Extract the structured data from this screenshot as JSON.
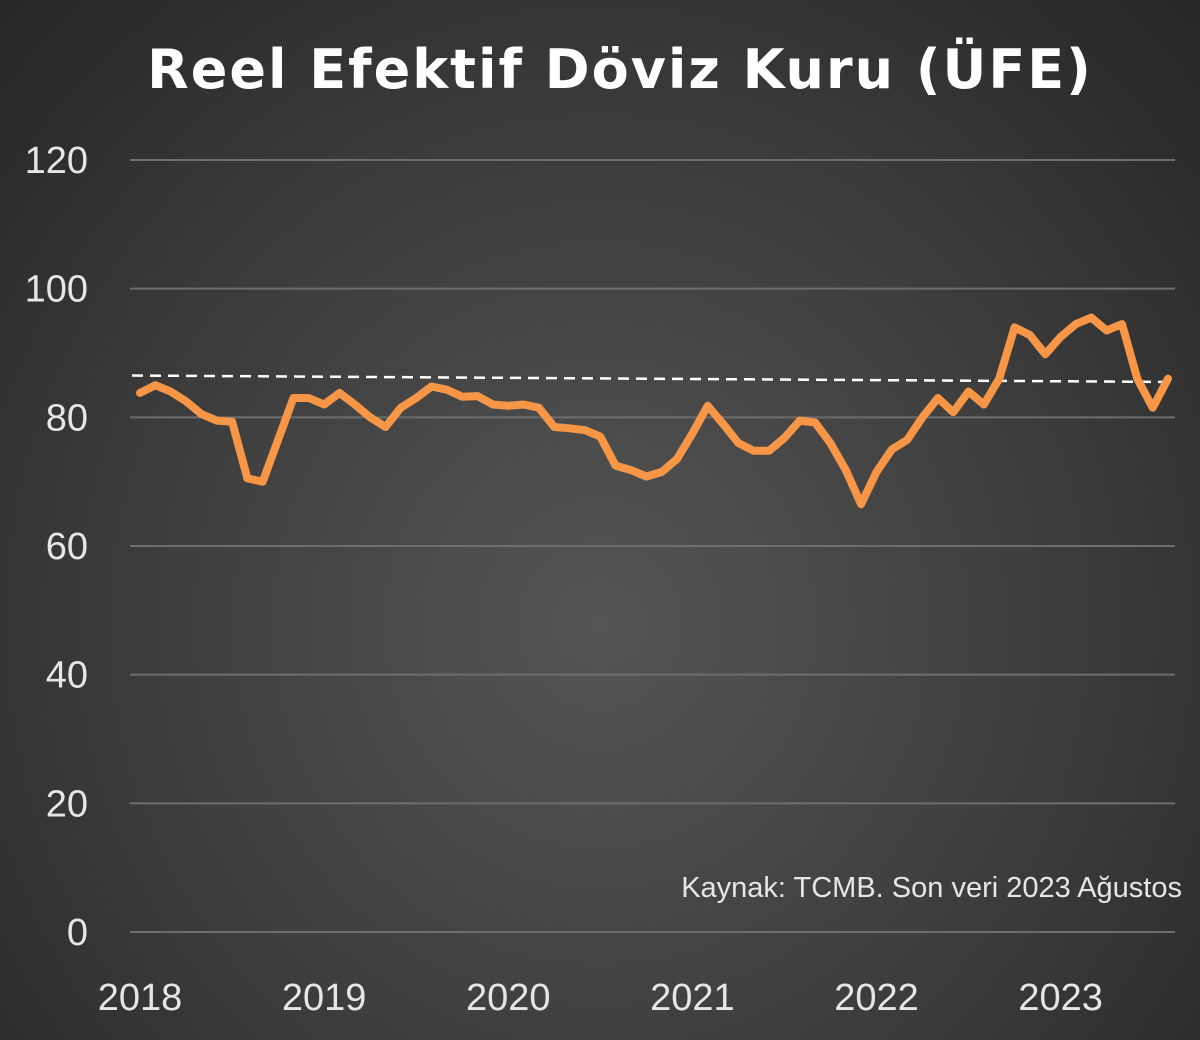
{
  "chart_data": {
    "type": "line",
    "title": "Reel Efektif Döviz Kuru (ÜFE)",
    "source_note": "Kaynak: TCMB. Son veri 2023 Ağustos",
    "xlabel": "",
    "ylabel": "",
    "ylim": [
      0,
      120
    ],
    "y_ticks": [
      "0",
      "20",
      "40",
      "60",
      "80",
      "100",
      "120"
    ],
    "x_ticks": [
      "2018",
      "2019",
      "2020",
      "2021",
      "2022",
      "2023"
    ],
    "x_start": "2018-01",
    "x_end": "2023-08",
    "grid": true,
    "legend": "none",
    "colors": {
      "series": "#f79646",
      "reference": "#ffffff",
      "grid": "#6e6e6e"
    },
    "series": [
      {
        "values": [
          83.8,
          85.0,
          84.0,
          82.5,
          80.5,
          79.5,
          79.3,
          70.5,
          70.0,
          76.5,
          83.0,
          83.0,
          82.0,
          83.8,
          82.0,
          80.0,
          78.5,
          81.5,
          83.0,
          84.8,
          84.3,
          83.2,
          83.3,
          82.0,
          81.8,
          82.0,
          81.5,
          78.5,
          78.3,
          78.0,
          77.0,
          72.5,
          71.8,
          70.8,
          71.5,
          73.5,
          77.5,
          81.8,
          79.0,
          76.0,
          74.8,
          74.8,
          76.8,
          79.5,
          79.2,
          76.0,
          71.8,
          66.5,
          71.5,
          75.0,
          76.5,
          80.0,
          83.0,
          80.8,
          84.0,
          82.0,
          86.0,
          94.0,
          92.8,
          89.8,
          92.5,
          94.5,
          95.5,
          93.5,
          94.5,
          86.0,
          81.5,
          86.0
        ]
      }
    ],
    "reference_line": {
      "start": 86.5,
      "end": 85.5
    }
  }
}
